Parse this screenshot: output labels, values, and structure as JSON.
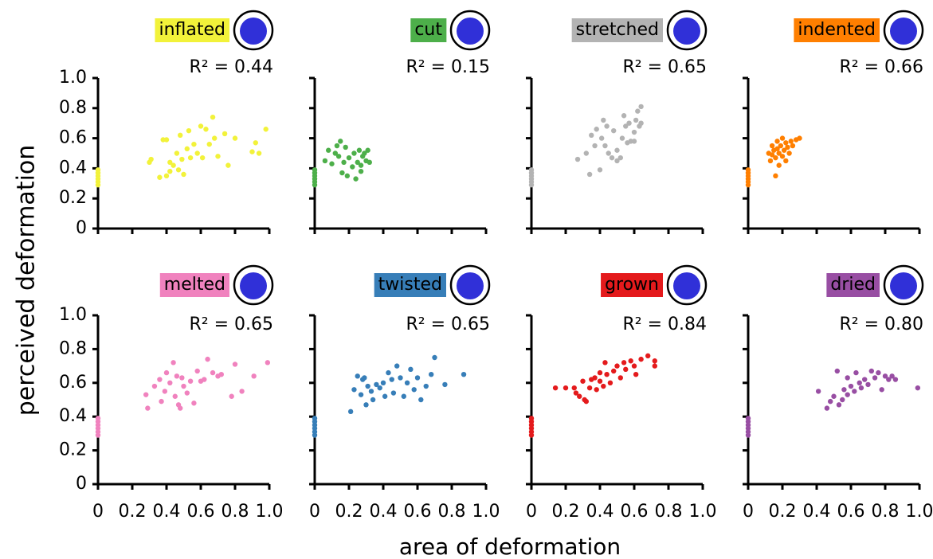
{
  "axis_titles": {
    "y": "perceived deformation",
    "x": "area of deformation"
  },
  "chart_data": [
    {
      "type": "scatter",
      "title": "inflated",
      "annotation": "R² = 0.44",
      "color": "#f2f23a",
      "x": [
        0,
        0,
        0,
        0,
        0,
        0,
        0.3,
        0.31,
        0.36,
        0.38,
        0.4,
        0.4,
        0.42,
        0.42,
        0.44,
        0.46,
        0.47,
        0.48,
        0.49,
        0.5,
        0.52,
        0.53,
        0.54,
        0.56,
        0.58,
        0.6,
        0.61,
        0.63,
        0.65,
        0.67,
        0.68,
        0.7,
        0.74,
        0.76,
        0.8,
        0.9,
        0.92,
        0.94,
        0.98
      ],
      "y": [
        0.29,
        0.31,
        0.33,
        0.35,
        0.37,
        0.39,
        0.44,
        0.46,
        0.34,
        0.59,
        0.35,
        0.59,
        0.38,
        0.44,
        0.42,
        0.5,
        0.39,
        0.62,
        0.46,
        0.36,
        0.53,
        0.65,
        0.47,
        0.56,
        0.5,
        0.68,
        0.47,
        0.66,
        0.56,
        0.74,
        0.6,
        0.48,
        0.63,
        0.42,
        0.6,
        0.51,
        0.57,
        0.5,
        0.66
      ],
      "xlim": [
        0,
        1
      ],
      "ylim": [
        0,
        1
      ],
      "xticks": [
        0,
        0.2,
        0.4,
        0.6,
        0.8,
        {
          "value": 1,
          "label": "1.0"
        }
      ],
      "yticks": [
        0,
        0.2,
        0.4,
        0.6,
        0.8,
        {
          "value": 1,
          "label": "1.0"
        }
      ]
    },
    {
      "type": "scatter",
      "title": "cut",
      "annotation": "R² = 0.15",
      "color": "#4daf4a",
      "x": [
        0,
        0,
        0,
        0,
        0,
        0,
        0.06,
        0.08,
        0.1,
        0.12,
        0.13,
        0.14,
        0.15,
        0.16,
        0.17,
        0.18,
        0.19,
        0.2,
        0.22,
        0.23,
        0.24,
        0.25,
        0.26,
        0.27,
        0.28,
        0.29,
        0.3,
        0.31,
        0.32,
        0.27
      ],
      "y": [
        0.29,
        0.31,
        0.33,
        0.35,
        0.37,
        0.39,
        0.45,
        0.52,
        0.43,
        0.5,
        0.55,
        0.48,
        0.58,
        0.37,
        0.44,
        0.54,
        0.35,
        0.47,
        0.41,
        0.5,
        0.33,
        0.44,
        0.52,
        0.42,
        0.48,
        0.5,
        0.45,
        0.52,
        0.44,
        0.38
      ],
      "xlim": [
        0,
        1
      ],
      "ylim": [
        0,
        1
      ],
      "xticks": [
        0,
        0.2,
        0.4,
        0.6,
        0.8,
        {
          "value": 1,
          "label": "1.0"
        }
      ],
      "yticks": [
        0,
        0.2,
        0.4,
        0.6,
        0.8,
        {
          "value": 1,
          "label": "1.0"
        }
      ]
    },
    {
      "type": "scatter",
      "title": "stretched",
      "annotation": "R² = 0.65",
      "color": "#b3b3b3",
      "x": [
        0,
        0,
        0,
        0,
        0,
        0,
        0.27,
        0.32,
        0.34,
        0.35,
        0.37,
        0.38,
        0.4,
        0.41,
        0.42,
        0.43,
        0.44,
        0.45,
        0.47,
        0.48,
        0.5,
        0.5,
        0.52,
        0.53,
        0.54,
        0.55,
        0.56,
        0.57,
        0.58,
        0.6,
        0.61,
        0.62,
        0.63,
        0.64,
        0.64,
        0.6
      ],
      "y": [
        0.29,
        0.31,
        0.33,
        0.35,
        0.37,
        0.39,
        0.46,
        0.5,
        0.36,
        0.62,
        0.55,
        0.66,
        0.39,
        0.6,
        0.72,
        0.55,
        0.68,
        0.5,
        0.47,
        0.65,
        0.52,
        0.45,
        0.47,
        0.6,
        0.75,
        0.68,
        0.57,
        0.7,
        0.58,
        0.64,
        0.72,
        0.78,
        0.68,
        0.7,
        0.81,
        0.58
      ],
      "xlim": [
        0,
        1
      ],
      "ylim": [
        0,
        1
      ],
      "xticks": [
        0,
        0.2,
        0.4,
        0.6,
        0.8,
        {
          "value": 1,
          "label": "1.0"
        }
      ],
      "yticks": [
        0,
        0.2,
        0.4,
        0.6,
        0.8,
        {
          "value": 1,
          "label": "1.0"
        }
      ]
    },
    {
      "type": "scatter",
      "title": "indented",
      "annotation": "R² = 0.66",
      "color": "#ff7f00",
      "x": [
        0,
        0,
        0,
        0,
        0,
        0,
        0.12,
        0.13,
        0.14,
        0.15,
        0.16,
        0.16,
        0.17,
        0.18,
        0.18,
        0.19,
        0.2,
        0.2,
        0.21,
        0.22,
        0.22,
        0.23,
        0.24,
        0.25,
        0.26,
        0.28,
        0.3,
        0.14,
        0.17
      ],
      "y": [
        0.29,
        0.31,
        0.33,
        0.35,
        0.37,
        0.39,
        0.5,
        0.45,
        0.55,
        0.52,
        0.47,
        0.35,
        0.58,
        0.5,
        0.42,
        0.55,
        0.6,
        0.48,
        0.52,
        0.57,
        0.45,
        0.54,
        0.5,
        0.58,
        0.55,
        0.59,
        0.6,
        0.49,
        0.53
      ],
      "xlim": [
        0,
        1
      ],
      "ylim": [
        0,
        1
      ],
      "xticks": [
        0,
        0.2,
        0.4,
        0.6,
        0.8,
        {
          "value": 1,
          "label": "1.0"
        }
      ],
      "yticks": [
        0,
        0.2,
        0.4,
        0.6,
        0.8,
        {
          "value": 1,
          "label": "1.0"
        }
      ]
    },
    {
      "type": "scatter",
      "title": "melted",
      "annotation": "R² = 0.65",
      "color": "#f082be",
      "x": [
        0,
        0,
        0,
        0,
        0,
        0,
        0.28,
        0.29,
        0.33,
        0.36,
        0.37,
        0.39,
        0.4,
        0.42,
        0.44,
        0.45,
        0.46,
        0.47,
        0.48,
        0.49,
        0.5,
        0.52,
        0.54,
        0.56,
        0.58,
        0.6,
        0.62,
        0.64,
        0.67,
        0.7,
        0.72,
        0.78,
        0.8,
        0.84,
        0.91,
        0.99
      ],
      "y": [
        0.29,
        0.31,
        0.33,
        0.35,
        0.37,
        0.39,
        0.53,
        0.45,
        0.58,
        0.62,
        0.49,
        0.55,
        0.66,
        0.6,
        0.72,
        0.52,
        0.64,
        0.47,
        0.45,
        0.63,
        0.58,
        0.54,
        0.61,
        0.48,
        0.67,
        0.61,
        0.62,
        0.74,
        0.66,
        0.64,
        0.65,
        0.52,
        0.71,
        0.55,
        0.64,
        0.72
      ],
      "xlim": [
        0,
        1
      ],
      "ylim": [
        0,
        1
      ],
      "xticks": [
        0,
        0.2,
        0.4,
        0.6,
        0.8,
        {
          "value": 1,
          "label": "1.0"
        }
      ],
      "yticks": [
        0,
        0.2,
        0.4,
        0.6,
        0.8,
        {
          "value": 1,
          "label": "1.0"
        }
      ]
    },
    {
      "type": "scatter",
      "title": "twisted",
      "annotation": "R² = 0.65",
      "color": "#377eb8",
      "x": [
        0,
        0,
        0,
        0,
        0,
        0,
        0.21,
        0.23,
        0.25,
        0.27,
        0.28,
        0.3,
        0.31,
        0.33,
        0.34,
        0.36,
        0.38,
        0.4,
        0.41,
        0.43,
        0.45,
        0.46,
        0.48,
        0.5,
        0.52,
        0.54,
        0.56,
        0.58,
        0.6,
        0.62,
        0.65,
        0.68,
        0.7,
        0.76,
        0.87,
        0.29
      ],
      "y": [
        0.29,
        0.31,
        0.33,
        0.35,
        0.37,
        0.39,
        0.43,
        0.56,
        0.64,
        0.53,
        0.62,
        0.47,
        0.58,
        0.55,
        0.5,
        0.59,
        0.57,
        0.6,
        0.52,
        0.66,
        0.62,
        0.54,
        0.7,
        0.63,
        0.52,
        0.6,
        0.68,
        0.56,
        0.63,
        0.5,
        0.58,
        0.65,
        0.75,
        0.59,
        0.65,
        0.63
      ],
      "xlim": [
        0,
        1
      ],
      "ylim": [
        0,
        1
      ],
      "xticks": [
        0,
        0.2,
        0.4,
        0.6,
        0.8,
        {
          "value": 1,
          "label": "1.0"
        }
      ],
      "yticks": [
        0,
        0.2,
        0.4,
        0.6,
        0.8,
        {
          "value": 1,
          "label": "1.0"
        }
      ]
    },
    {
      "type": "scatter",
      "title": "grown",
      "annotation": "R² = 0.84",
      "color": "#e41a1c",
      "x": [
        0,
        0,
        0,
        0,
        0,
        0,
        0.14,
        0.2,
        0.25,
        0.28,
        0.3,
        0.31,
        0.32,
        0.34,
        0.35,
        0.37,
        0.38,
        0.4,
        0.42,
        0.43,
        0.44,
        0.46,
        0.48,
        0.5,
        0.52,
        0.54,
        0.55,
        0.58,
        0.6,
        0.61,
        0.64,
        0.68,
        0.72,
        0.72,
        0.4,
        0.26
      ],
      "y": [
        0.29,
        0.31,
        0.33,
        0.35,
        0.37,
        0.39,
        0.57,
        0.57,
        0.57,
        0.52,
        0.61,
        0.5,
        0.49,
        0.57,
        0.62,
        0.63,
        0.56,
        0.66,
        0.58,
        0.72,
        0.65,
        0.6,
        0.67,
        0.7,
        0.63,
        0.72,
        0.68,
        0.73,
        0.7,
        0.65,
        0.74,
        0.76,
        0.73,
        0.7,
        0.61,
        0.54
      ],
      "xlim": [
        0,
        1
      ],
      "ylim": [
        0,
        1
      ],
      "xticks": [
        0,
        0.2,
        0.4,
        0.6,
        0.8,
        {
          "value": 1,
          "label": "1.0"
        }
      ],
      "yticks": [
        0,
        0.2,
        0.4,
        0.6,
        0.8,
        {
          "value": 1,
          "label": "1.0"
        }
      ]
    },
    {
      "type": "scatter",
      "title": "dried",
      "annotation": "R² = 0.80",
      "color": "#984ea3",
      "x": [
        0,
        0,
        0,
        0,
        0,
        0,
        0.41,
        0.46,
        0.48,
        0.5,
        0.52,
        0.53,
        0.55,
        0.56,
        0.58,
        0.6,
        0.62,
        0.63,
        0.65,
        0.66,
        0.68,
        0.7,
        0.72,
        0.74,
        0.76,
        0.78,
        0.8,
        0.82,
        0.84,
        0.86,
        0.99,
        0.58
      ],
      "y": [
        0.29,
        0.31,
        0.33,
        0.35,
        0.37,
        0.39,
        0.55,
        0.45,
        0.49,
        0.52,
        0.67,
        0.47,
        0.5,
        0.56,
        0.53,
        0.58,
        0.55,
        0.66,
        0.6,
        0.57,
        0.62,
        0.59,
        0.67,
        0.63,
        0.66,
        0.56,
        0.64,
        0.62,
        0.64,
        0.62,
        0.57,
        0.63
      ],
      "xlim": [
        0,
        1
      ],
      "ylim": [
        0,
        1
      ],
      "xticks": [
        0,
        0.2,
        0.4,
        0.6,
        0.8,
        {
          "value": 1,
          "label": "1.0"
        }
      ],
      "yticks": [
        0,
        0.2,
        0.4,
        0.6,
        0.8,
        {
          "value": 1,
          "label": "1.0"
        }
      ]
    }
  ]
}
